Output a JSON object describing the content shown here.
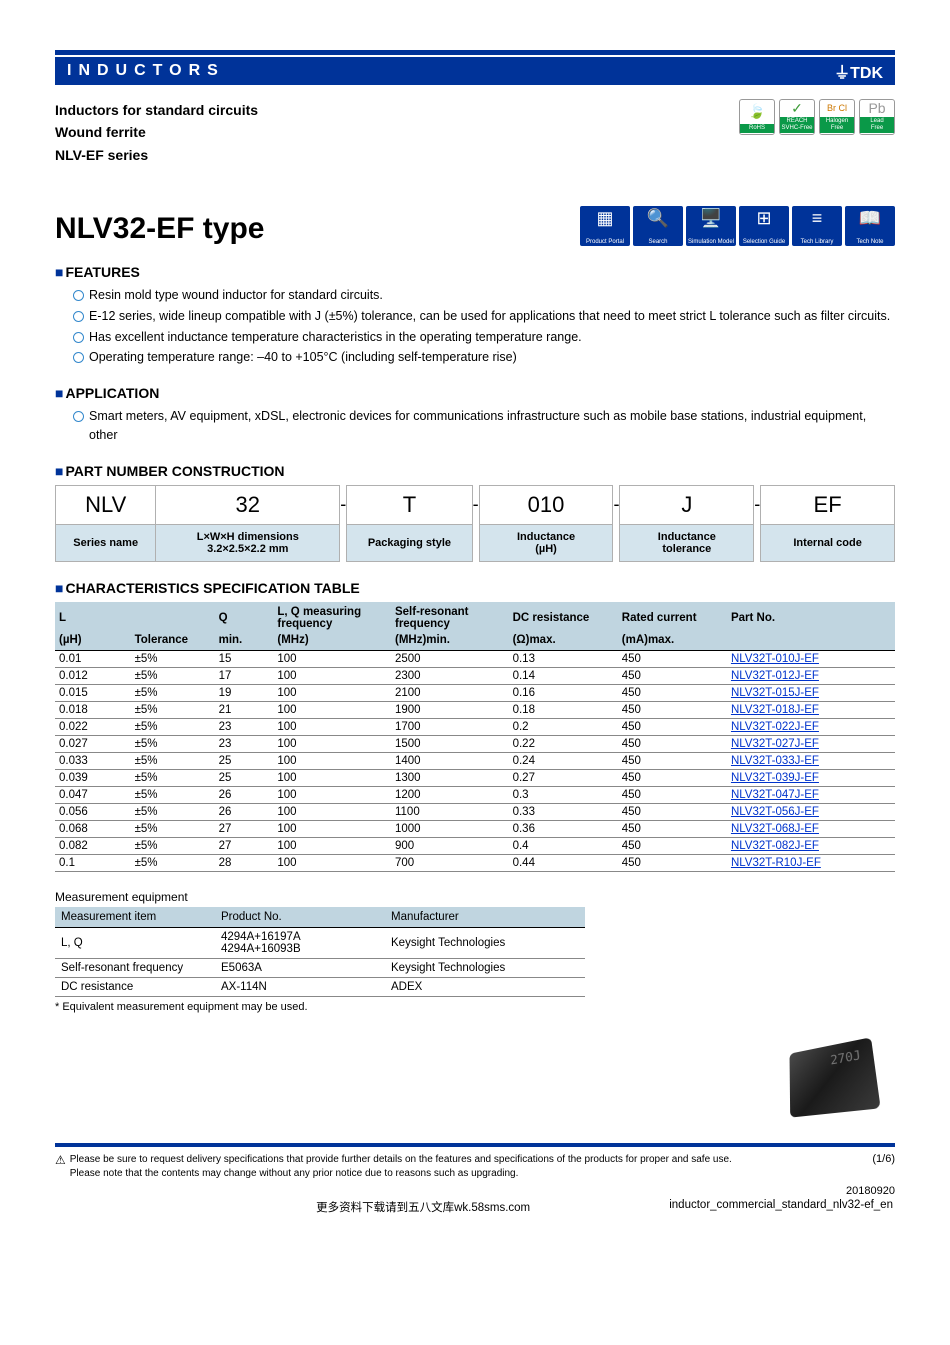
{
  "header": {
    "category": "INDUCTORS",
    "brand": "⏚TDK"
  },
  "subheader": {
    "line1": "Inductors for standard circuits",
    "line2": "Wound ferrite",
    "line3": "NLV-EF series"
  },
  "compliance_badges": [
    {
      "icon": "🍃",
      "label": "RoHS",
      "icon_color": "#3a9b35"
    },
    {
      "icon": "✓",
      "label": "REACH\nSVHC-Free",
      "icon_color": "#3a9b35"
    },
    {
      "icon": "Br Cl",
      "label": "Halogen\nFree",
      "icon_color": "#cc7700"
    },
    {
      "icon": "Pb",
      "label": "Lead\nFree",
      "icon_color": "#999"
    }
  ],
  "title": "NLV32-EF type",
  "portal_icons": [
    {
      "glyph": "▦",
      "label": "Product Portal"
    },
    {
      "glyph": "🔍",
      "label": "Search"
    },
    {
      "glyph": "🖥️",
      "label": "Simulation Model"
    },
    {
      "glyph": "⊞",
      "label": "Selection Guide"
    },
    {
      "glyph": "≡",
      "label": "Tech Library"
    },
    {
      "glyph": "📖",
      "label": "Tech Note"
    }
  ],
  "sections": {
    "features": {
      "heading": "FEATURES",
      "items": [
        "Resin mold type wound inductor for standard circuits.",
        "E-12 series, wide lineup compatible with J (±5%) tolerance, can be used for applications that need to meet strict L tolerance such as filter circuits.",
        "Has excellent inductance temperature characteristics in the operating temperature range.",
        "Operating temperature range: –40 to +105°C (including self-temperature rise)"
      ]
    },
    "application": {
      "heading": "APPLICATION",
      "items": [
        "Smart meters, AV equipment, xDSL, electronic devices for communications infrastructure such as mobile base stations, industrial equipment, other"
      ]
    },
    "partnumber": {
      "heading": "PART NUMBER CONSTRUCTION",
      "cells": [
        "NLV",
        "32",
        "T",
        "010",
        "J",
        "EF"
      ],
      "labels": [
        "Series name",
        "L×W×H dimensions\n3.2×2.5×2.2 mm",
        "Packaging style",
        "Inductance\n(µH)",
        "Inductance\ntolerance",
        "Internal code"
      ],
      "separator": "-"
    },
    "spec": {
      "heading": "CHARACTERISTICS SPECIFICATION TABLE",
      "headers_row1": [
        "L",
        "",
        "Q",
        "L, Q measuring frequency",
        "Self-resonant frequency",
        "DC resistance",
        "Rated current",
        "Part No."
      ],
      "headers_row2": [
        "(µH)",
        "Tolerance",
        "min.",
        "(MHz)",
        "(MHz)min.",
        "(Ω)max.",
        "(mA)max.",
        ""
      ],
      "rows": [
        [
          "0.01",
          "±5%",
          "15",
          "100",
          "2500",
          "0.13",
          "450",
          "NLV32T-010J-EF"
        ],
        [
          "0.012",
          "±5%",
          "17",
          "100",
          "2300",
          "0.14",
          "450",
          "NLV32T-012J-EF"
        ],
        [
          "0.015",
          "±5%",
          "19",
          "100",
          "2100",
          "0.16",
          "450",
          "NLV32T-015J-EF"
        ],
        [
          "0.018",
          "±5%",
          "21",
          "100",
          "1900",
          "0.18",
          "450",
          "NLV32T-018J-EF"
        ],
        [
          "0.022",
          "±5%",
          "23",
          "100",
          "1700",
          "0.2",
          "450",
          "NLV32T-022J-EF"
        ],
        [
          "0.027",
          "±5%",
          "23",
          "100",
          "1500",
          "0.22",
          "450",
          "NLV32T-027J-EF"
        ],
        [
          "0.033",
          "±5%",
          "25",
          "100",
          "1400",
          "0.24",
          "450",
          "NLV32T-033J-EF"
        ],
        [
          "0.039",
          "±5%",
          "25",
          "100",
          "1300",
          "0.27",
          "450",
          "NLV32T-039J-EF"
        ],
        [
          "0.047",
          "±5%",
          "26",
          "100",
          "1200",
          "0.3",
          "450",
          "NLV32T-047J-EF"
        ],
        [
          "0.056",
          "±5%",
          "26",
          "100",
          "1100",
          "0.33",
          "450",
          "NLV32T-056J-EF"
        ],
        [
          "0.068",
          "±5%",
          "27",
          "100",
          "1000",
          "0.36",
          "450",
          "NLV32T-068J-EF"
        ],
        [
          "0.082",
          "±5%",
          "27",
          "100",
          "900",
          "0.4",
          "450",
          "NLV32T-082J-EF"
        ],
        [
          "0.1",
          "±5%",
          "28",
          "100",
          "700",
          "0.44",
          "450",
          "NLV32T-R10J-EF"
        ]
      ]
    },
    "measurement": {
      "caption": "Measurement equipment",
      "headers": [
        "Measurement item",
        "Product No.",
        "Manufacturer"
      ],
      "rows": [
        [
          "L, Q",
          "4294A+16197A\n4294A+16093B",
          "Keysight Technologies"
        ],
        [
          "Self-resonant frequency",
          "E5063A",
          "Keysight Technologies"
        ],
        [
          "DC resistance",
          "AX-114N",
          "ADEX"
        ]
      ],
      "note": "* Equivalent measurement equipment may be used."
    }
  },
  "product_image": {
    "text": "270J"
  },
  "footer": {
    "warn_icon": "⚠",
    "text_line1": "Please be sure to request delivery specifications that provide further details on the features and specifications of the products for proper and safe use.",
    "text_line2": "Please note that the contents may change without any prior notice due to reasons such as upgrading.",
    "page": "(1/6)",
    "date": "20180920",
    "bottom_left": "更多资料下载请到五八文库wk.58sms.com",
    "bottom_right": "inductor_commercial_standard_nlv32-ef_en"
  },
  "colors": {
    "primary": "#003399",
    "table_header_bg": "#c0d5e0",
    "pn_label_bg": "#d4e4ed",
    "link": "#0033cc"
  }
}
